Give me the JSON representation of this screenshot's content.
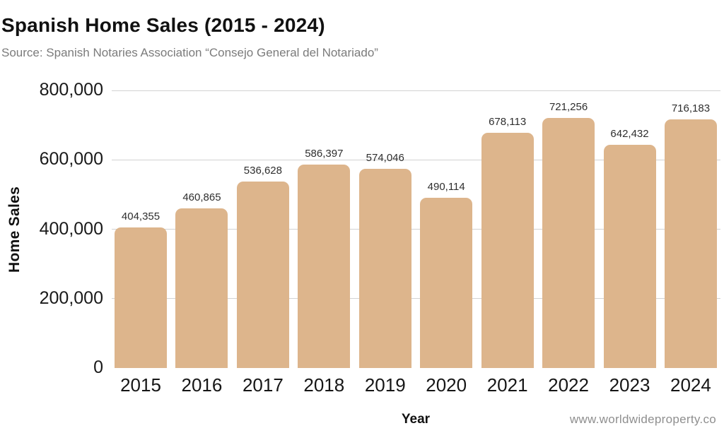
{
  "header": {
    "title": "Spanish Home Sales (2015 - 2024)",
    "source": "Source: Spanish Notaries Association “Consejo General del Notariado”"
  },
  "chart_data": {
    "type": "bar",
    "title": "Spanish Home Sales (2015 - 2024)",
    "xlabel": "Year",
    "ylabel": "Home Sales",
    "categories": [
      "2015",
      "2016",
      "2017",
      "2018",
      "2019",
      "2020",
      "2021",
      "2022",
      "2023",
      "2024"
    ],
    "values": [
      404355,
      460865,
      536628,
      586397,
      574046,
      490114,
      678113,
      721256,
      642432,
      716183
    ],
    "value_labels": [
      "404,355",
      "460,865",
      "536,628",
      "586,397",
      "574,046",
      "490,114",
      "678,113",
      "721,256",
      "642,432",
      "716,183"
    ],
    "ylim": [
      0,
      800000
    ],
    "yticks": [
      0,
      200000,
      400000,
      600000,
      800000
    ],
    "ytick_labels": [
      "0",
      "200,000",
      "400,000",
      "600,000",
      "800,000"
    ],
    "gridline_ticks": [
      200000,
      400000,
      600000,
      800000
    ],
    "grid": true,
    "legend_position": "none",
    "bar_color": "#DDB58C",
    "gridline_color": "#D2D2D2"
  },
  "footer": {
    "watermark": "www.worldwideproperty.co"
  }
}
